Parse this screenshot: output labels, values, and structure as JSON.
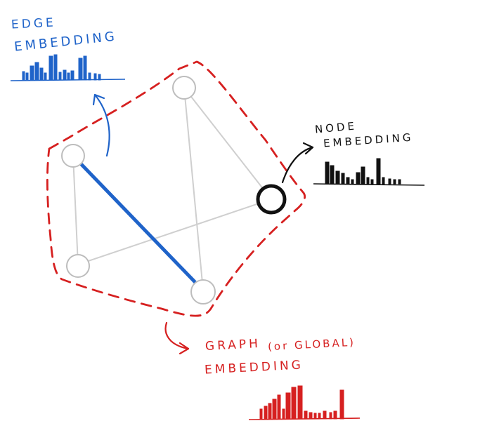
{
  "labels": {
    "edge": [
      "EDGE",
      "EMBEDDING"
    ],
    "node": [
      "NODE",
      "EMBEDDING"
    ],
    "graph": {
      "line1_a": "GRAPH",
      "line1_b": "(or GLOBAL)",
      "line2": "EMBEDDING"
    }
  },
  "colors": {
    "edge": "#1f63c9",
    "node": "#111111",
    "graph": "#d62020",
    "graph_edges": "#cfcfcf",
    "nodes": "#bdbdbd"
  },
  "icons": {
    "edge_arrow": "curved-arrow-icon",
    "node_arrow": "curved-arrow-icon",
    "graph_arrow": "curved-arrow-icon"
  }
}
